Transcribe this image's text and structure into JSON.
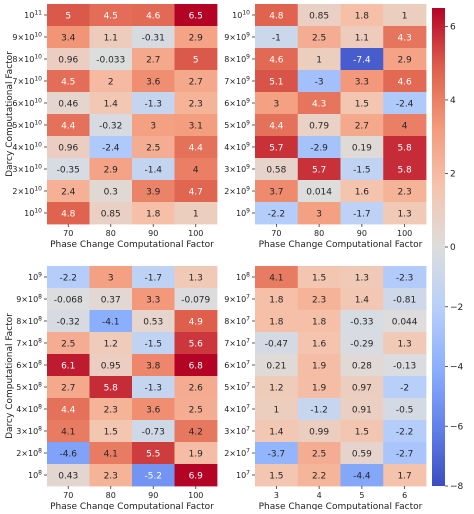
{
  "chart_data": [
    {
      "type": "heatmap",
      "xlabel": "Phase Change Computational Factor",
      "ylabel": "Darcy Computational Factor",
      "x_ticks": [
        "70",
        "80",
        "90",
        "100"
      ],
      "y_ticks": [
        "10^11",
        "9×10^10",
        "8×10^10",
        "7×10^10",
        "6×10^10",
        "5×10^10",
        "4×10^10",
        "3×10^10",
        "2×10^10",
        "10^10"
      ],
      "values": [
        [
          5,
          4.5,
          4.6,
          6.5
        ],
        [
          3.4,
          1.1,
          -0.31,
          2.9
        ],
        [
          0.96,
          -0.033,
          2.7,
          5
        ],
        [
          4.5,
          2,
          3.6,
          2.7
        ],
        [
          0.46,
          1.4,
          -1.3,
          2.3
        ],
        [
          4.4,
          -0.32,
          3,
          3.1
        ],
        [
          0.96,
          -2.4,
          2.5,
          4.4
        ],
        [
          -0.35,
          2.9,
          -1.4,
          4
        ],
        [
          2.4,
          0.3,
          3.9,
          4.7
        ],
        [
          4.8,
          0.85,
          1.8,
          1
        ]
      ]
    },
    {
      "type": "heatmap",
      "xlabel": "Phase Change Computational Factor",
      "ylabel": "",
      "x_ticks": [
        "70",
        "80",
        "90",
        "100"
      ],
      "y_ticks": [
        "10^10",
        "9×10^9",
        "8×10^9",
        "7×10^9",
        "6×10^9",
        "5×10^9",
        "4×10^9",
        "3×10^9",
        "2×10^9",
        "10^9"
      ],
      "values": [
        [
          4.8,
          0.85,
          1.8,
          1
        ],
        [
          -1,
          2.5,
          1.1,
          4.3
        ],
        [
          4.6,
          1,
          -7.4,
          2.9
        ],
        [
          5.1,
          -3,
          3.3,
          4.6
        ],
        [
          3,
          4.3,
          1.5,
          -2.4
        ],
        [
          4.4,
          0.79,
          2.7,
          4
        ],
        [
          5.7,
          -2.9,
          0.19,
          5.8
        ],
        [
          0.58,
          5.7,
          -1.5,
          5.8
        ],
        [
          3.7,
          0.014,
          1.6,
          2.3
        ],
        [
          -2.2,
          3,
          -1.7,
          1.3
        ]
      ]
    },
    {
      "type": "heatmap",
      "xlabel": "Phase Change Computational Factor",
      "ylabel": "Darcy Computational Factor",
      "x_ticks": [
        "70",
        "80",
        "90",
        "100"
      ],
      "y_ticks": [
        "10^9",
        "9×10^8",
        "8×10^8",
        "7×10^8",
        "6×10^8",
        "5×10^8",
        "4×10^8",
        "3×10^8",
        "2×10^8",
        "10^8"
      ],
      "values": [
        [
          -2.2,
          3,
          -1.7,
          1.3
        ],
        [
          -0.068,
          0.37,
          3.3,
          -0.079
        ],
        [
          -0.32,
          -4.1,
          0.53,
          4.9
        ],
        [
          2.5,
          1.2,
          -1.5,
          5.6
        ],
        [
          6.1,
          0.95,
          3.8,
          6.8
        ],
        [
          2.7,
          5.8,
          -1.3,
          2.6
        ],
        [
          4.4,
          2.3,
          3.6,
          2.5
        ],
        [
          4.1,
          1.5,
          -0.73,
          4.2
        ],
        [
          -4.6,
          4.1,
          5.5,
          1.9
        ],
        [
          0.43,
          2.3,
          -5.2,
          6.9
        ]
      ]
    },
    {
      "type": "heatmap",
      "xlabel": "Phase Change Computational Factor",
      "ylabel": "",
      "x_ticks": [
        "3",
        "4",
        "5",
        "6"
      ],
      "y_ticks": [
        "10^8",
        "9×10^7",
        "8×10^7",
        "7×10^7",
        "6×10^7",
        "5×10^7",
        "4×10^7",
        "3×10^7",
        "2×10^7",
        "10^7"
      ],
      "values": [
        [
          4.1,
          1.5,
          1.3,
          -2.3
        ],
        [
          1.8,
          2.3,
          1.4,
          -0.81
        ],
        [
          1.8,
          1.8,
          -0.33,
          0.044
        ],
        [
          -0.47,
          1.6,
          -0.29,
          1.3
        ],
        [
          0.21,
          1.9,
          0.28,
          -0.13
        ],
        [
          1.2,
          1.9,
          0.97,
          -2
        ],
        [
          1,
          -1.2,
          0.91,
          -0.5
        ],
        [
          1.4,
          0.99,
          1.5,
          -2.2
        ],
        [
          -3.7,
          2.5,
          0.59,
          -2.7
        ],
        [
          1.5,
          2.2,
          -4.4,
          1.7
        ]
      ]
    }
  ],
  "colorbar": {
    "colormap": "coolwarm",
    "range": [
      -8,
      6.5
    ],
    "ticks": [
      -8,
      -6,
      -4,
      -2,
      0,
      2,
      4,
      6
    ]
  }
}
